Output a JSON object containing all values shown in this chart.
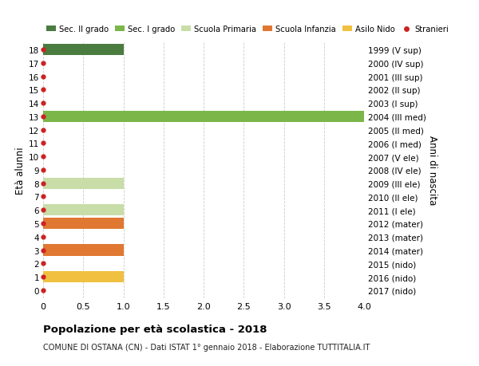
{
  "ages": [
    18,
    17,
    16,
    15,
    14,
    13,
    12,
    11,
    10,
    9,
    8,
    7,
    6,
    5,
    4,
    3,
    2,
    1,
    0
  ],
  "years": [
    "1999 (V sup)",
    "2000 (IV sup)",
    "2001 (III sup)",
    "2002 (II sup)",
    "2003 (I sup)",
    "2004 (III med)",
    "2005 (II med)",
    "2006 (I med)",
    "2007 (V ele)",
    "2008 (IV ele)",
    "2009 (III ele)",
    "2010 (II ele)",
    "2011 (I ele)",
    "2012 (mater)",
    "2013 (mater)",
    "2014 (mater)",
    "2015 (nido)",
    "2016 (nido)",
    "2017 (nido)"
  ],
  "bar_values": [
    1,
    0,
    0,
    0,
    0,
    4,
    0,
    0,
    0,
    0,
    1,
    0,
    1,
    1,
    0,
    1,
    0,
    1,
    0
  ],
  "bar_colors": [
    "#4a7c3f",
    "#4a7c3f",
    "#4a7c3f",
    "#4a7c3f",
    "#4a7c3f",
    "#7ab648",
    "#7ab648",
    "#7ab648",
    "#c8dda8",
    "#c8dda8",
    "#c8dda8",
    "#c8dda8",
    "#c8dda8",
    "#e07832",
    "#e07832",
    "#e07832",
    "#f0c040",
    "#f0c040",
    "#f0c040"
  ],
  "dot_color": "#cc2222",
  "legend_labels": [
    "Sec. II grado",
    "Sec. I grado",
    "Scuola Primaria",
    "Scuola Infanzia",
    "Asilo Nido",
    "Stranieri"
  ],
  "legend_colors": [
    "#4a7c3f",
    "#7ab648",
    "#c8dda8",
    "#e07832",
    "#f0c040",
    "#cc2222"
  ],
  "ylabel_left": "Età alunni",
  "ylabel_right": "Anni di nascita",
  "xlim": [
    0,
    4.0
  ],
  "xticks": [
    0,
    0.5,
    1.0,
    1.5,
    2.0,
    2.5,
    3.0,
    3.5,
    4.0
  ],
  "xtick_labels": [
    "0",
    "0.5",
    "1.0",
    "1.5",
    "2.0",
    "2.5",
    "3.0",
    "3.5",
    "4.0"
  ],
  "title": "Popolazione per età scolastica - 2018",
  "subtitle": "COMUNE DI OSTANA (CN) - Dati ISTAT 1° gennaio 2018 - Elaborazione TUTTITALIA.IT",
  "bg_color": "#ffffff",
  "grid_color": "#cccccc",
  "bar_height": 0.85,
  "ylim_min": -0.6,
  "ylim_max": 18.6
}
